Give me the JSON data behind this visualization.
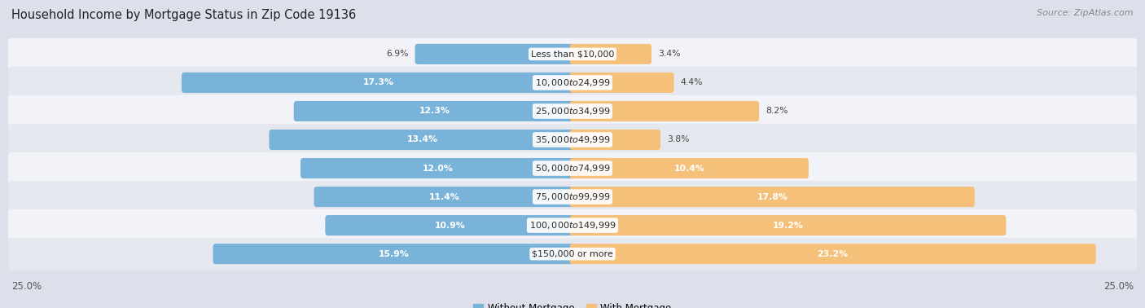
{
  "title": "Household Income by Mortgage Status in Zip Code 19136",
  "source": "Source: ZipAtlas.com",
  "categories": [
    "Less than $10,000",
    "$10,000 to $24,999",
    "$25,000 to $34,999",
    "$35,000 to $49,999",
    "$50,000 to $74,999",
    "$75,000 to $99,999",
    "$100,000 to $149,999",
    "$150,000 or more"
  ],
  "without_mortgage": [
    6.9,
    17.3,
    12.3,
    13.4,
    12.0,
    11.4,
    10.9,
    15.9
  ],
  "with_mortgage": [
    3.4,
    4.4,
    8.2,
    3.8,
    10.4,
    17.8,
    19.2,
    23.2
  ],
  "color_without": "#7ab3d9",
  "color_with": "#f5c17a",
  "color_with_dark": "#e8a84a",
  "bg_color": "#dde0ea",
  "row_bg_even": "#f2f3f8",
  "row_bg_odd": "#e6e8f0",
  "max_val": 25.0,
  "title_fontsize": 10.5,
  "source_fontsize": 8,
  "label_fontsize": 8,
  "pct_fontsize": 7.8,
  "tick_fontsize": 8.5,
  "inside_threshold_wo": 8.0,
  "inside_threshold_wm": 10.0
}
